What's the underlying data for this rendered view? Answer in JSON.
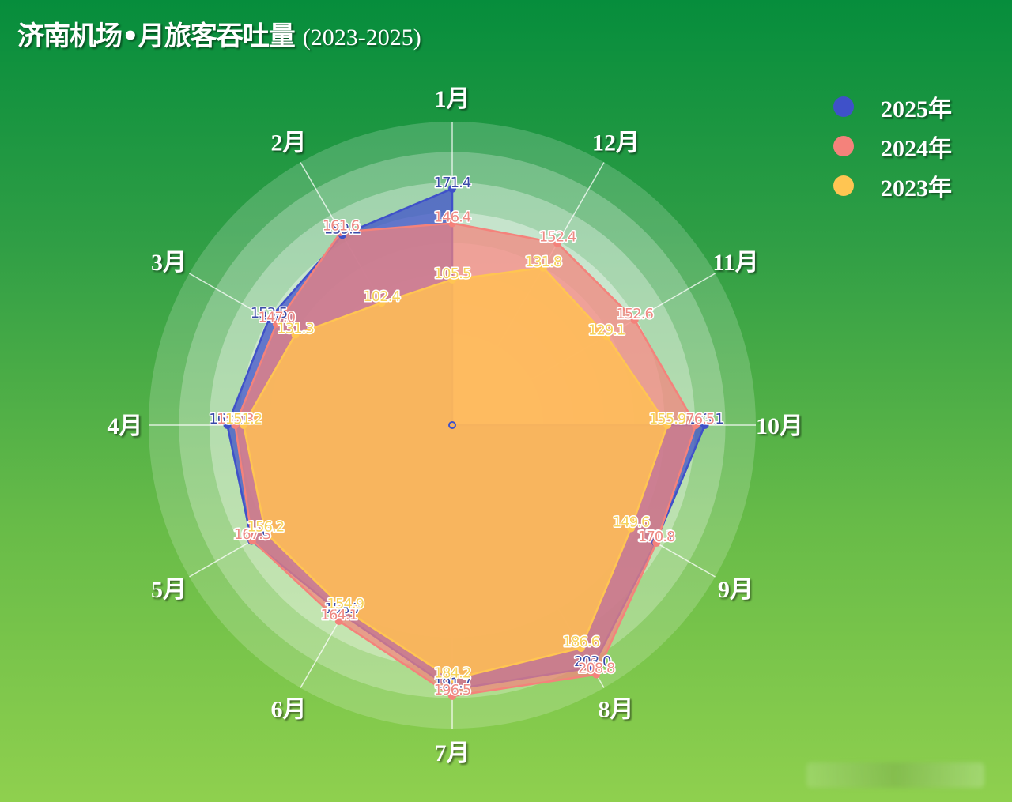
{
  "title": {
    "main": "济南机场•月旅客吞吐量",
    "sub": "(2023-2025)"
  },
  "legend": [
    {
      "label": "2025年",
      "color": "#3f51c9"
    },
    {
      "label": "2024年",
      "color": "#f4827b"
    },
    {
      "label": "2023年",
      "color": "#ffc552"
    }
  ],
  "chart_data": {
    "type": "radar",
    "title": "济南机场•月旅客吞吐量 (2023-2025)",
    "categories": [
      "1月",
      "2月",
      "3月",
      "4月",
      "5月",
      "6月",
      "7月",
      "8月",
      "9月",
      "10月",
      "11月",
      "12月"
    ],
    "axis_order_note": "1月 at top, proceeding counter-clockwise",
    "radial_range": [
      0,
      220
    ],
    "legend_position": "top-right",
    "series": [
      {
        "name": "2025年",
        "color": "#3f51c9",
        "values": [
          171.4,
          159.2,
          153.5,
          163.0,
          167.9,
          158.7,
          191.7,
          203.0,
          170.1,
          183.1,
          null,
          null
        ]
      },
      {
        "name": "2024年",
        "color": "#f4827b",
        "values": [
          146.4,
          161.6,
          147.0,
          157.3,
          167.3,
          164.1,
          196.5,
          208.8,
          170.8,
          176.5,
          152.6,
          152.4
        ]
      },
      {
        "name": "2023年",
        "color": "#ffc552",
        "values": [
          105.5,
          102.4,
          131.3,
          151.2,
          156.2,
          154.9,
          184.2,
          186.6,
          149.6,
          155.9,
          129.1,
          131.8
        ]
      }
    ]
  }
}
